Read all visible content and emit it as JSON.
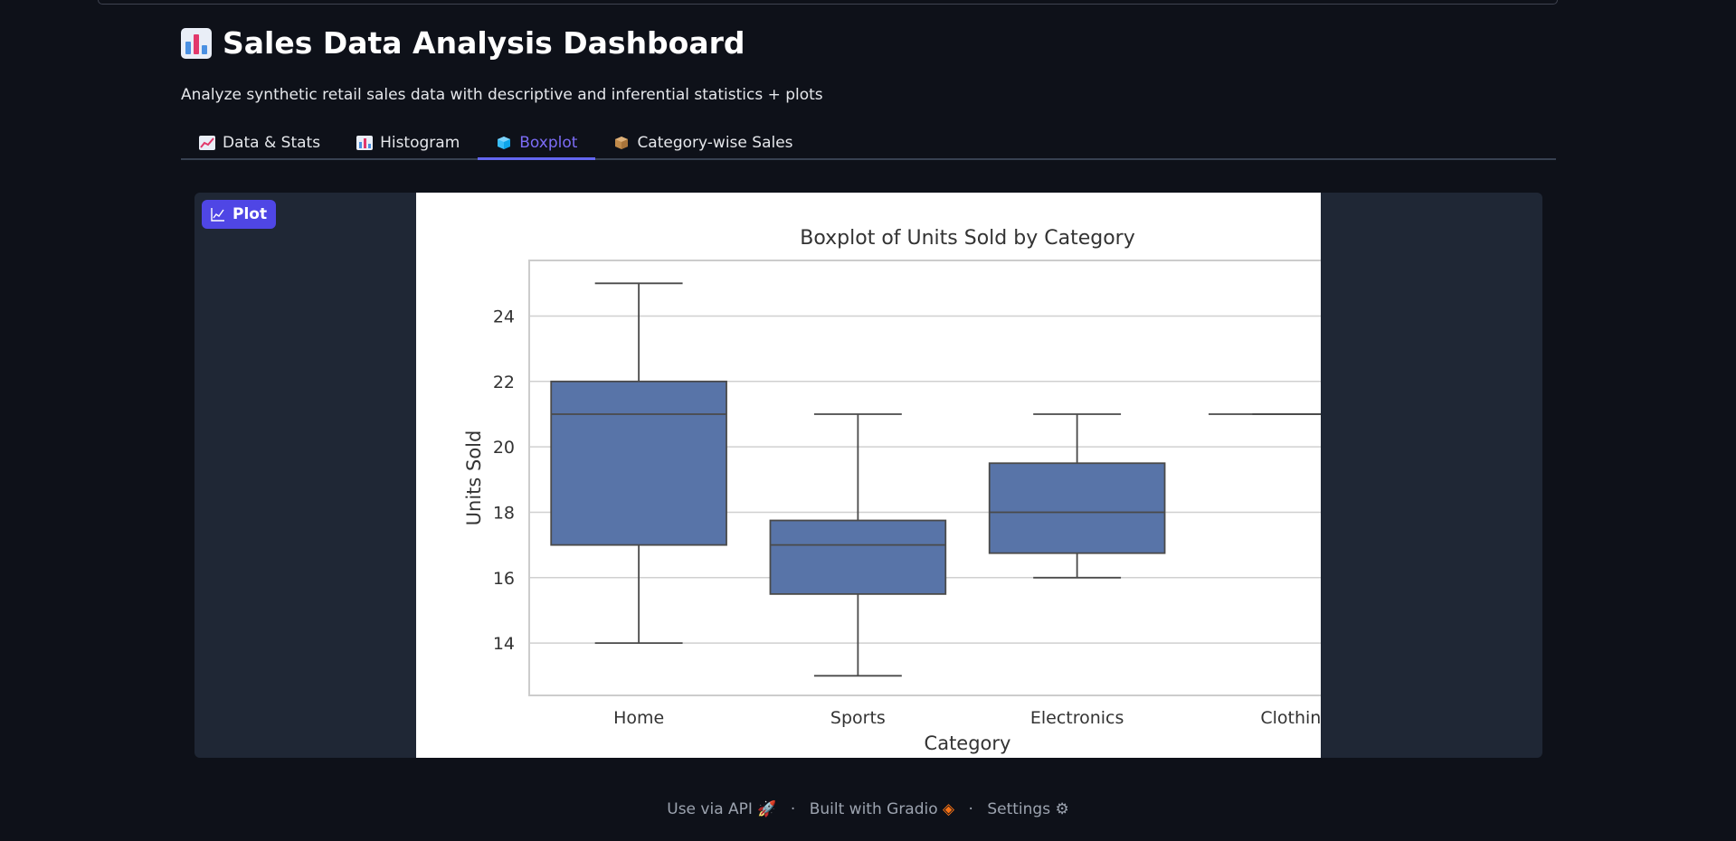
{
  "app": {
    "title": "Sales Data Analysis Dashboard",
    "title_icon": "bar-chart-icon",
    "subtitle": "Analyze synthetic retail sales data with descriptive and inferential statistics + plots"
  },
  "tabs": [
    {
      "label": "Data & Stats",
      "icon": "line-chart-icon",
      "active": false
    },
    {
      "label": "Histogram",
      "icon": "bar-chart-icon",
      "active": false
    },
    {
      "label": "Boxplot",
      "icon": "cube-icon",
      "active": true
    },
    {
      "label": "Category-wise Sales",
      "icon": "package-icon",
      "active": false
    }
  ],
  "plot_panel": {
    "label": "Plot"
  },
  "chart_data": {
    "type": "boxplot",
    "title": "Boxplot of Units Sold by Category",
    "xlabel": "Category",
    "ylabel": "Units Sold",
    "ylim": [
      12.4,
      25.7
    ],
    "yticks": [
      14,
      16,
      18,
      20,
      22,
      24
    ],
    "grid": true,
    "categories": [
      "Home",
      "Sports",
      "Electronics",
      "Clothing"
    ],
    "boxes": [
      {
        "category": "Home",
        "whisker_low": 14,
        "q1": 17,
        "median": 21,
        "q3": 22,
        "whisker_high": 25
      },
      {
        "category": "Sports",
        "whisker_low": 13,
        "q1": 15.5,
        "median": 17,
        "q3": 17.75,
        "whisker_high": 21
      },
      {
        "category": "Electronics",
        "whisker_low": 16,
        "q1": 16.75,
        "median": 18,
        "q3": 19.5,
        "whisker_high": 21
      },
      {
        "category": "Clothing",
        "whisker_low": 21,
        "q1": 21,
        "median": 21,
        "q3": 21,
        "whisker_high": 21
      }
    ],
    "box_color": "#5874a8"
  },
  "footer": {
    "api": "Use via API",
    "built": "Built with Gradio",
    "settings": "Settings",
    "separator": "·"
  }
}
